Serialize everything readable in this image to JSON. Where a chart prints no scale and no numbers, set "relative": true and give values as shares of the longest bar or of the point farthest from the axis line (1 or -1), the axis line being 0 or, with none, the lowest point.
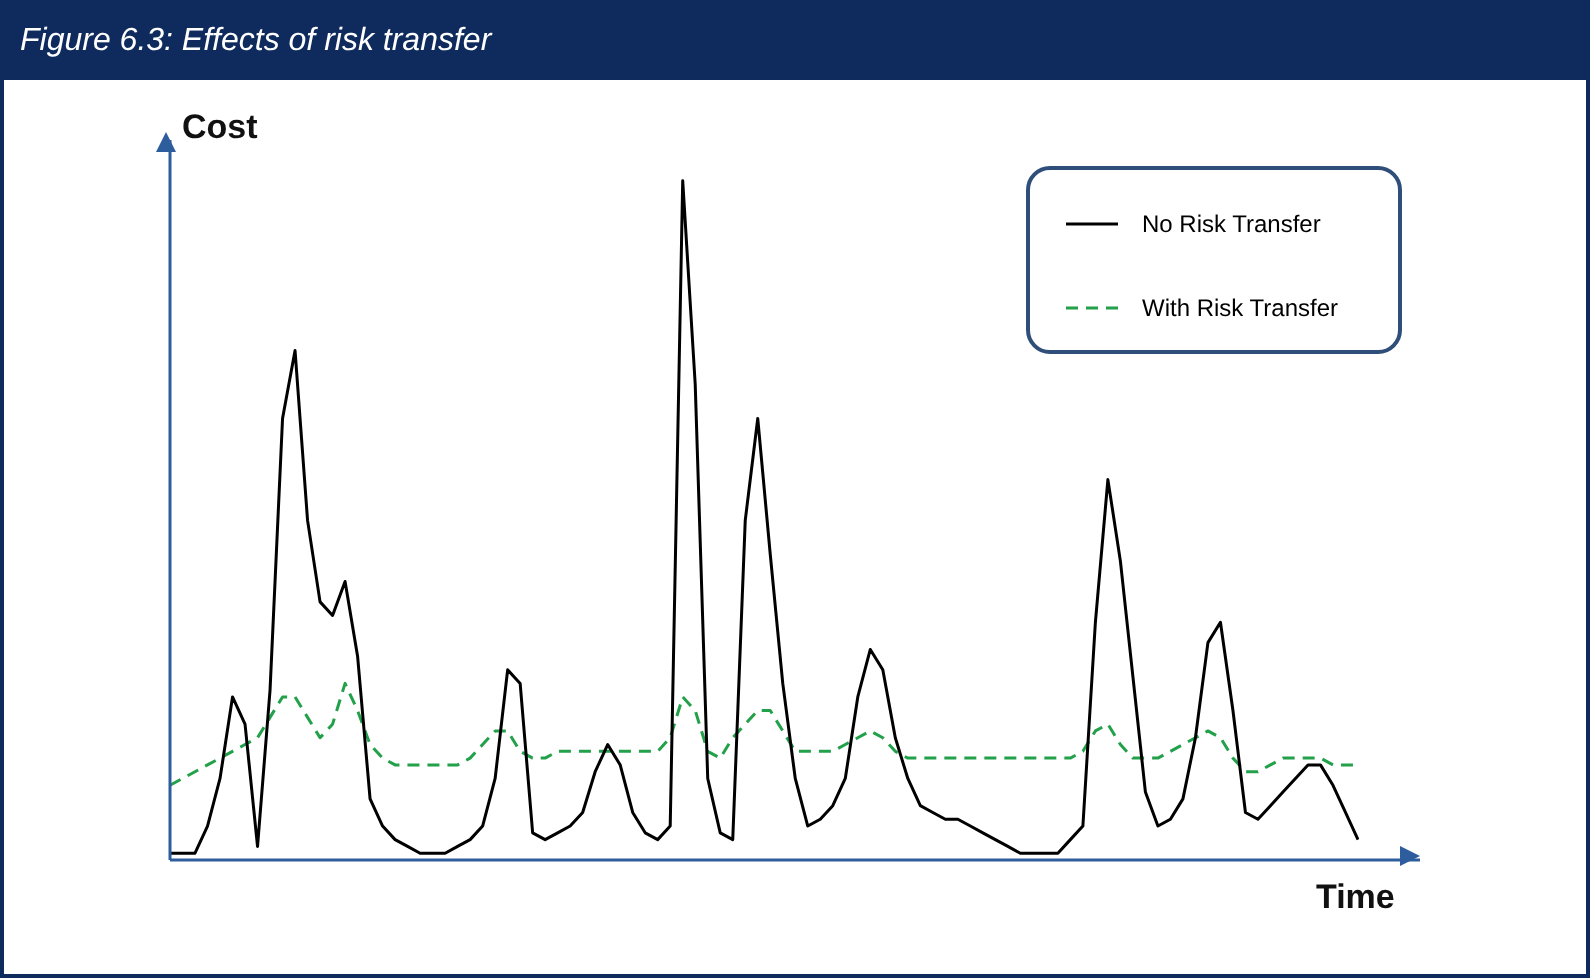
{
  "chart_data": {
    "type": "line",
    "title": "Figure 6.3: Effects of risk transfer",
    "xlabel": "Time",
    "ylabel": "Cost",
    "relative": true,
    "legend": "top right",
    "marker": "none",
    "categories": [
      null,
      null,
      null,
      null,
      null,
      null,
      null,
      null,
      null,
      null,
      null,
      null,
      null,
      null,
      null,
      null,
      null,
      null,
      null,
      null,
      null,
      null,
      null,
      null,
      null,
      null,
      null,
      null,
      null,
      null,
      null,
      null,
      null,
      null,
      null,
      null,
      null,
      null,
      null,
      null,
      null,
      null,
      null,
      null,
      null,
      null,
      null,
      null,
      null,
      null,
      null,
      null,
      null,
      null,
      null,
      null,
      null,
      null,
      null,
      null,
      null,
      null,
      null,
      null,
      null,
      null,
      null,
      null,
      null,
      null,
      null,
      null,
      null,
      null,
      null,
      null,
      null,
      null,
      null,
      null,
      null,
      null,
      null,
      null,
      null,
      null,
      null,
      null,
      null,
      null,
      null,
      null,
      null,
      null,
      null,
      null
    ],
    "series": [
      {
        "name": "No Risk Transfer",
        "color": "#000000",
        "line_style": "solid",
        "values": [
          0.01,
          0.01,
          0.01,
          0.05,
          0.12,
          0.24,
          0.2,
          0.02,
          0.25,
          0.65,
          0.75,
          0.5,
          0.38,
          0.36,
          0.41,
          0.3,
          0.09,
          0.05,
          0.03,
          0.02,
          0.01,
          0.01,
          0.01,
          0.02,
          0.03,
          0.05,
          0.12,
          0.28,
          0.26,
          0.04,
          0.03,
          0.04,
          0.05,
          0.07,
          0.13,
          0.17,
          0.14,
          0.07,
          0.04,
          0.03,
          0.05,
          1,
          0.7,
          0.12,
          0.04,
          0.03,
          0.5,
          0.65,
          0.45,
          0.26,
          0.12,
          0.05,
          0.06,
          0.08,
          0.12,
          0.24,
          0.31,
          0.28,
          0.18,
          0.12,
          0.08,
          0.07,
          0.06,
          0.06,
          0.05,
          0.04,
          0.03,
          0.02,
          0.01,
          0.01,
          0.01,
          0.01,
          0.03,
          0.05,
          0.35,
          0.56,
          0.44,
          0.27,
          0.1,
          0.05,
          0.06,
          0.09,
          0.18,
          0.32,
          0.35,
          0.22,
          0.07,
          0.06,
          0.08,
          0.1,
          0.12,
          0.14,
          0.14,
          0.11,
          0.07,
          0.03
        ]
      },
      {
        "name": "With Risk Transfer",
        "color": "#22a04a",
        "line_style": "dashed",
        "values": [
          0.11,
          0.12,
          0.13,
          0.14,
          0.15,
          0.16,
          0.17,
          0.18,
          0.21,
          0.24,
          0.24,
          0.21,
          0.18,
          0.2,
          0.26,
          0.22,
          0.17,
          0.15,
          0.14,
          0.14,
          0.14,
          0.14,
          0.14,
          0.14,
          0.15,
          0.17,
          0.19,
          0.19,
          0.16,
          0.15,
          0.15,
          0.16,
          0.16,
          0.16,
          0.16,
          0.16,
          0.16,
          0.16,
          0.16,
          0.16,
          0.18,
          0.24,
          0.22,
          0.16,
          0.15,
          0.18,
          0.2,
          0.22,
          0.22,
          0.19,
          0.16,
          0.16,
          0.16,
          0.16,
          0.17,
          0.18,
          0.19,
          0.18,
          0.16,
          0.15,
          0.15,
          0.15,
          0.15,
          0.15,
          0.15,
          0.15,
          0.15,
          0.15,
          0.15,
          0.15,
          0.15,
          0.15,
          0.15,
          0.16,
          0.19,
          0.2,
          0.17,
          0.15,
          0.15,
          0.15,
          0.16,
          0.17,
          0.18,
          0.19,
          0.18,
          0.15,
          0.13,
          0.13,
          0.14,
          0.15,
          0.15,
          0.15,
          0.15,
          0.14,
          0.14,
          0.14
        ]
      }
    ]
  }
}
